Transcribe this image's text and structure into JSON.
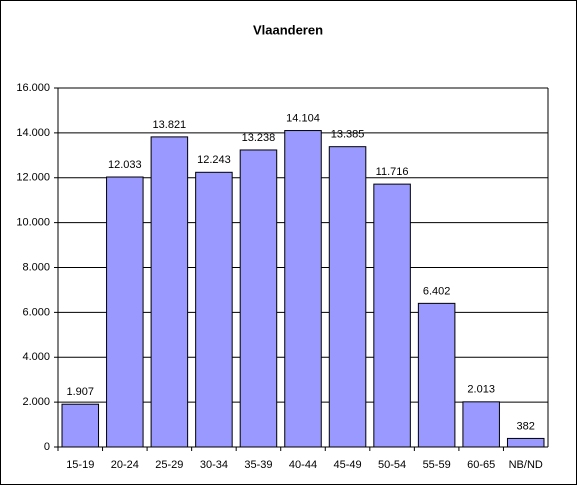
{
  "chart_data": {
    "type": "bar",
    "title": "Vlaanderen",
    "categories": [
      "15-19",
      "20-24",
      "25-29",
      "30-34",
      "35-39",
      "40-44",
      "45-49",
      "50-54",
      "55-59",
      "60-65",
      "NB/ND"
    ],
    "values": [
      1907,
      12033,
      13821,
      12243,
      13238,
      14104,
      13385,
      11716,
      6402,
      2013,
      382
    ],
    "value_labels": [
      "1.907",
      "12.033",
      "13.821",
      "12.243",
      "13.238",
      "14.104",
      "13.385",
      "11.716",
      "6.402",
      "2.013",
      "382"
    ],
    "color": "#9999ff",
    "ylim": [
      0,
      16000
    ],
    "yticks": [
      0,
      {
        "value": 2000,
        "label": "2.000"
      },
      {
        "value": 4000,
        "label": "4.000"
      },
      {
        "value": 6000,
        "label": "6.000"
      },
      {
        "value": 8000,
        "label": "8.000"
      },
      {
        "value": 10000,
        "label": "10.000"
      },
      {
        "value": 12000,
        "label": "12.000"
      },
      {
        "value": 14000,
        "label": "14.000"
      },
      {
        "value": 16000,
        "label": "16.000"
      }
    ],
    "grid": true
  }
}
